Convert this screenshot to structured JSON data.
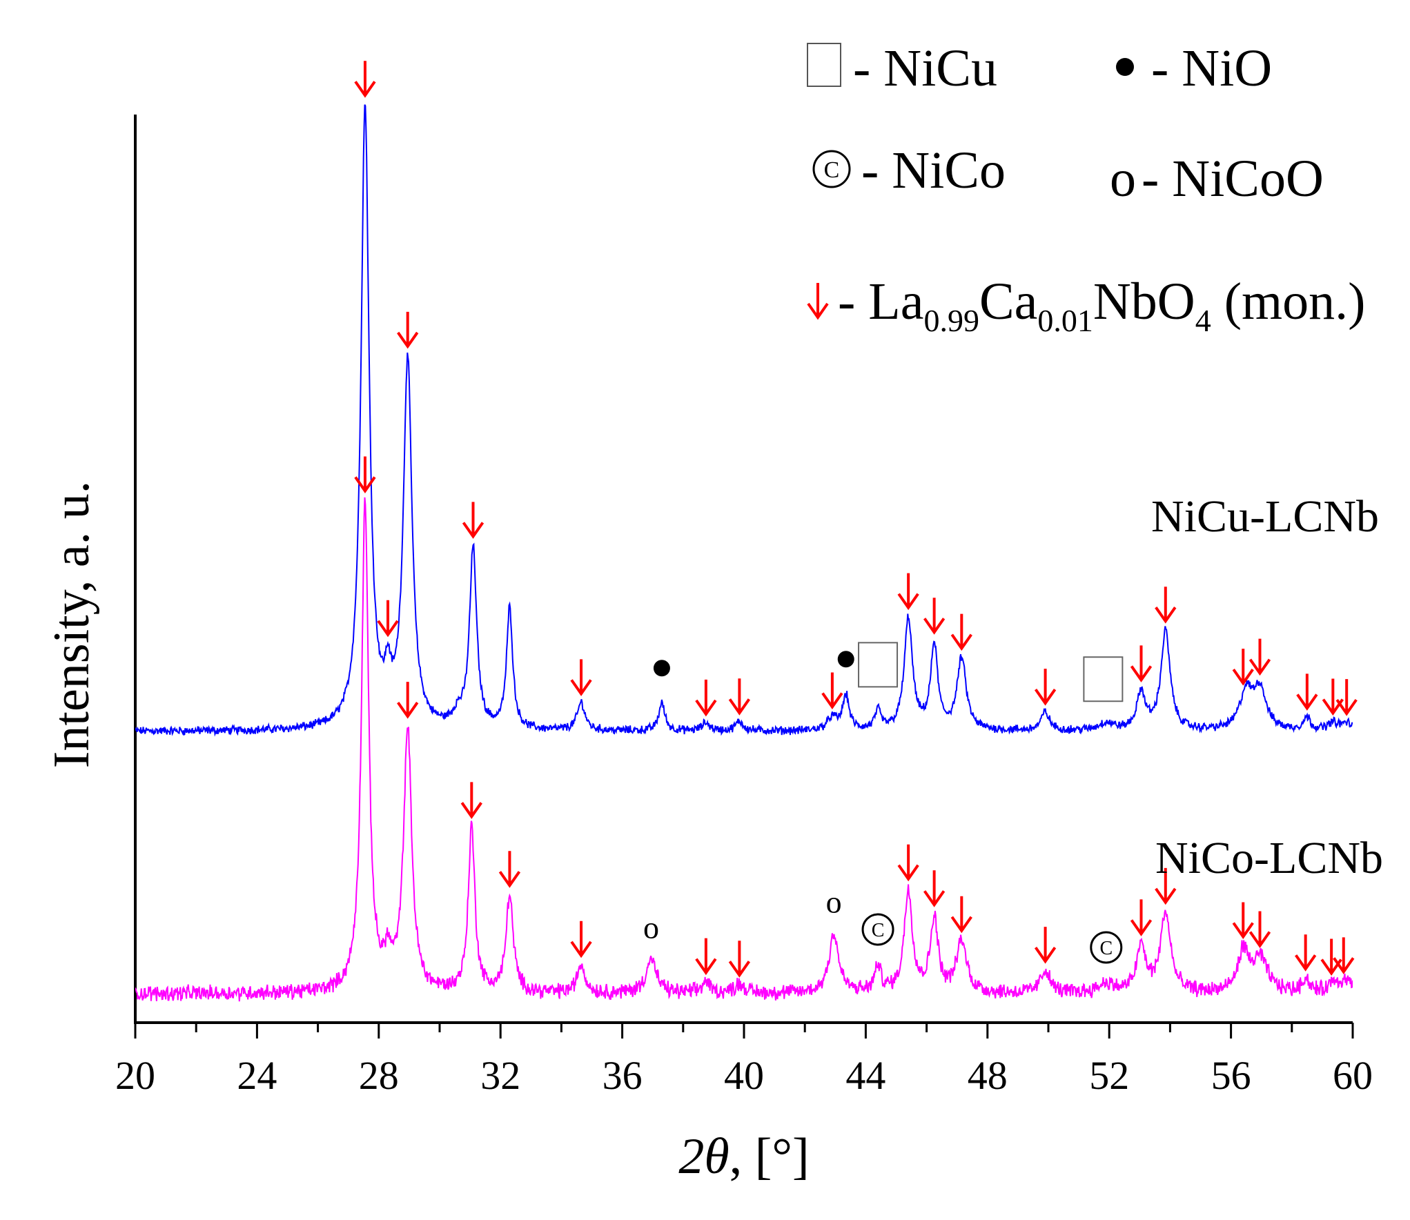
{
  "chart_data": {
    "type": "line",
    "xlabel": {
      "italic": "2θ",
      "rest": ", [°]"
    },
    "ylabel": "Intensity, a. u.",
    "xlim": [
      20,
      60
    ],
    "xticks": [
      "20",
      "24",
      "28",
      "32",
      "36",
      "40",
      "44",
      "48",
      "52",
      "56",
      "60"
    ],
    "grid": false,
    "legend": {
      "placement": "top-right",
      "entries": [
        {
          "symbol": "square",
          "text": "- NiCu"
        },
        {
          "symbol": "dot",
          "text": "- NiO"
        },
        {
          "symbol": "copyright",
          "text": "- NiCo"
        },
        {
          "symbol": "o",
          "text": "- NiCoO"
        },
        {
          "symbol": "red-arrow",
          "prefix": "- La",
          "sub1": "0.99",
          "mid": "Ca",
          "sub2": "0.01",
          "tail": "NbO",
          "sub3": "4",
          "suffix": " (mon.)"
        }
      ]
    },
    "series": [
      {
        "name": "NiCu-LCNb",
        "color": "#0000ff",
        "baseline": 0.0,
        "peaks": [
          {
            "x": 27.55,
            "h": 10.0,
            "w": 0.16
          },
          {
            "x": 28.3,
            "h": 0.6,
            "w": 0.12
          },
          {
            "x": 28.95,
            "h": 5.9,
            "w": 0.17
          },
          {
            "x": 30.6,
            "h": 0.2,
            "w": 0.2
          },
          {
            "x": 31.1,
            "h": 2.9,
            "w": 0.14
          },
          {
            "x": 32.3,
            "h": 1.95,
            "w": 0.12
          },
          {
            "x": 34.65,
            "h": 0.45,
            "w": 0.15
          },
          {
            "x": 37.3,
            "h": 0.45,
            "w": 0.12
          },
          {
            "x": 38.75,
            "h": 0.13,
            "w": 0.15
          },
          {
            "x": 39.85,
            "h": 0.15,
            "w": 0.15
          },
          {
            "x": 42.9,
            "h": 0.2,
            "w": 0.2
          },
          {
            "x": 43.35,
            "h": 0.55,
            "w": 0.13
          },
          {
            "x": 44.4,
            "h": 0.3,
            "w": 0.12
          },
          {
            "x": 45.4,
            "h": 1.8,
            "w": 0.16
          },
          {
            "x": 46.25,
            "h": 1.35,
            "w": 0.14
          },
          {
            "x": 47.15,
            "h": 1.15,
            "w": 0.18
          },
          {
            "x": 49.9,
            "h": 0.3,
            "w": 0.16
          },
          {
            "x": 51.9,
            "h": 0.12,
            "w": 0.3
          },
          {
            "x": 53.05,
            "h": 0.6,
            "w": 0.17
          },
          {
            "x": 53.85,
            "h": 1.6,
            "w": 0.18
          },
          {
            "x": 56.5,
            "h": 0.6,
            "w": 0.25
          },
          {
            "x": 56.95,
            "h": 0.65,
            "w": 0.25
          },
          {
            "x": 58.5,
            "h": 0.2,
            "w": 0.15
          },
          {
            "x": 59.35,
            "h": 0.12,
            "w": 0.2
          },
          {
            "x": 59.8,
            "h": 0.12,
            "w": 0.2
          }
        ]
      },
      {
        "name": "NiCo-LCNb",
        "color": "#ff00ff",
        "baseline": 0.0,
        "peaks": [
          {
            "x": 27.55,
            "h": 4.3,
            "w": 0.14
          },
          {
            "x": 28.3,
            "h": 0.25,
            "w": 0.15
          },
          {
            "x": 28.95,
            "h": 2.3,
            "w": 0.16
          },
          {
            "x": 31.05,
            "h": 1.45,
            "w": 0.13
          },
          {
            "x": 32.3,
            "h": 0.85,
            "w": 0.14
          },
          {
            "x": 34.65,
            "h": 0.25,
            "w": 0.15
          },
          {
            "x": 36.95,
            "h": 0.3,
            "w": 0.2
          },
          {
            "x": 38.75,
            "h": 0.1,
            "w": 0.15
          },
          {
            "x": 39.85,
            "h": 0.08,
            "w": 0.2
          },
          {
            "x": 42.95,
            "h": 0.52,
            "w": 0.19
          },
          {
            "x": 44.4,
            "h": 0.22,
            "w": 0.13
          },
          {
            "x": 45.4,
            "h": 0.9,
            "w": 0.16
          },
          {
            "x": 46.25,
            "h": 0.65,
            "w": 0.15
          },
          {
            "x": 47.15,
            "h": 0.45,
            "w": 0.2
          },
          {
            "x": 49.9,
            "h": 0.2,
            "w": 0.18
          },
          {
            "x": 51.9,
            "h": 0.08,
            "w": 0.3
          },
          {
            "x": 53.05,
            "h": 0.4,
            "w": 0.18
          },
          {
            "x": 53.85,
            "h": 0.7,
            "w": 0.2
          },
          {
            "x": 56.4,
            "h": 0.35,
            "w": 0.2
          },
          {
            "x": 56.95,
            "h": 0.3,
            "w": 0.3
          },
          {
            "x": 58.45,
            "h": 0.12,
            "w": 0.15
          },
          {
            "x": 59.4,
            "h": 0.1,
            "w": 0.2
          },
          {
            "x": 59.8,
            "h": 0.1,
            "w": 0.2
          }
        ]
      }
    ],
    "markers": [
      {
        "series": 0,
        "symbol": "arrow",
        "x": [
          27.55,
          28.3,
          28.95,
          31.1,
          34.65,
          38.75,
          39.85,
          42.9,
          45.4,
          46.25,
          47.15,
          49.9,
          53.05,
          53.85,
          56.4,
          56.95,
          58.5,
          59.35,
          59.8
        ]
      },
      {
        "series": 0,
        "symbol": "dot",
        "x": [
          37.3,
          43.35
        ]
      },
      {
        "series": 0,
        "symbol": "square",
        "x": [
          44.4,
          51.8
        ]
      },
      {
        "series": 1,
        "symbol": "arrow",
        "x": [
          27.55,
          28.95,
          31.05,
          32.3,
          34.65,
          38.75,
          39.85,
          45.4,
          46.25,
          47.15,
          49.9,
          53.05,
          53.85,
          56.4,
          56.95,
          58.45,
          59.3,
          59.7
        ]
      },
      {
        "series": 1,
        "symbol": "o",
        "x": [
          36.95,
          42.95
        ]
      },
      {
        "series": 1,
        "symbol": "copyright",
        "x": [
          44.4,
          51.9
        ]
      }
    ]
  }
}
